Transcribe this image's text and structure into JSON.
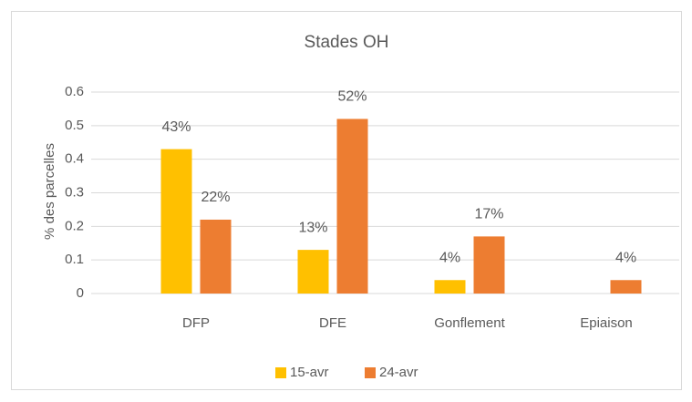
{
  "chart_data": {
    "type": "bar",
    "title": "Stades OH",
    "ylabel": "% des parcelles",
    "categories": [
      "DFP",
      "DFE",
      "Gonflement",
      "Epiaison"
    ],
    "series": [
      {
        "name": "15-avr",
        "color": "#FFC000",
        "values": [
          0.43,
          0.13,
          0.04,
          null
        ],
        "value_labels": [
          "43%",
          "13%",
          "4%",
          null
        ]
      },
      {
        "name": "24-avr",
        "color": "#ED7D31",
        "values": [
          0.22,
          0.52,
          0.17,
          0.04
        ],
        "value_labels": [
          "22%",
          "52%",
          "17%",
          "4%"
        ]
      }
    ],
    "ylim": [
      0,
      0.6
    ],
    "yticks": [
      0,
      0.1,
      0.2,
      0.3,
      0.4,
      0.5,
      0.6
    ],
    "grid": true,
    "legend": "bottom"
  }
}
